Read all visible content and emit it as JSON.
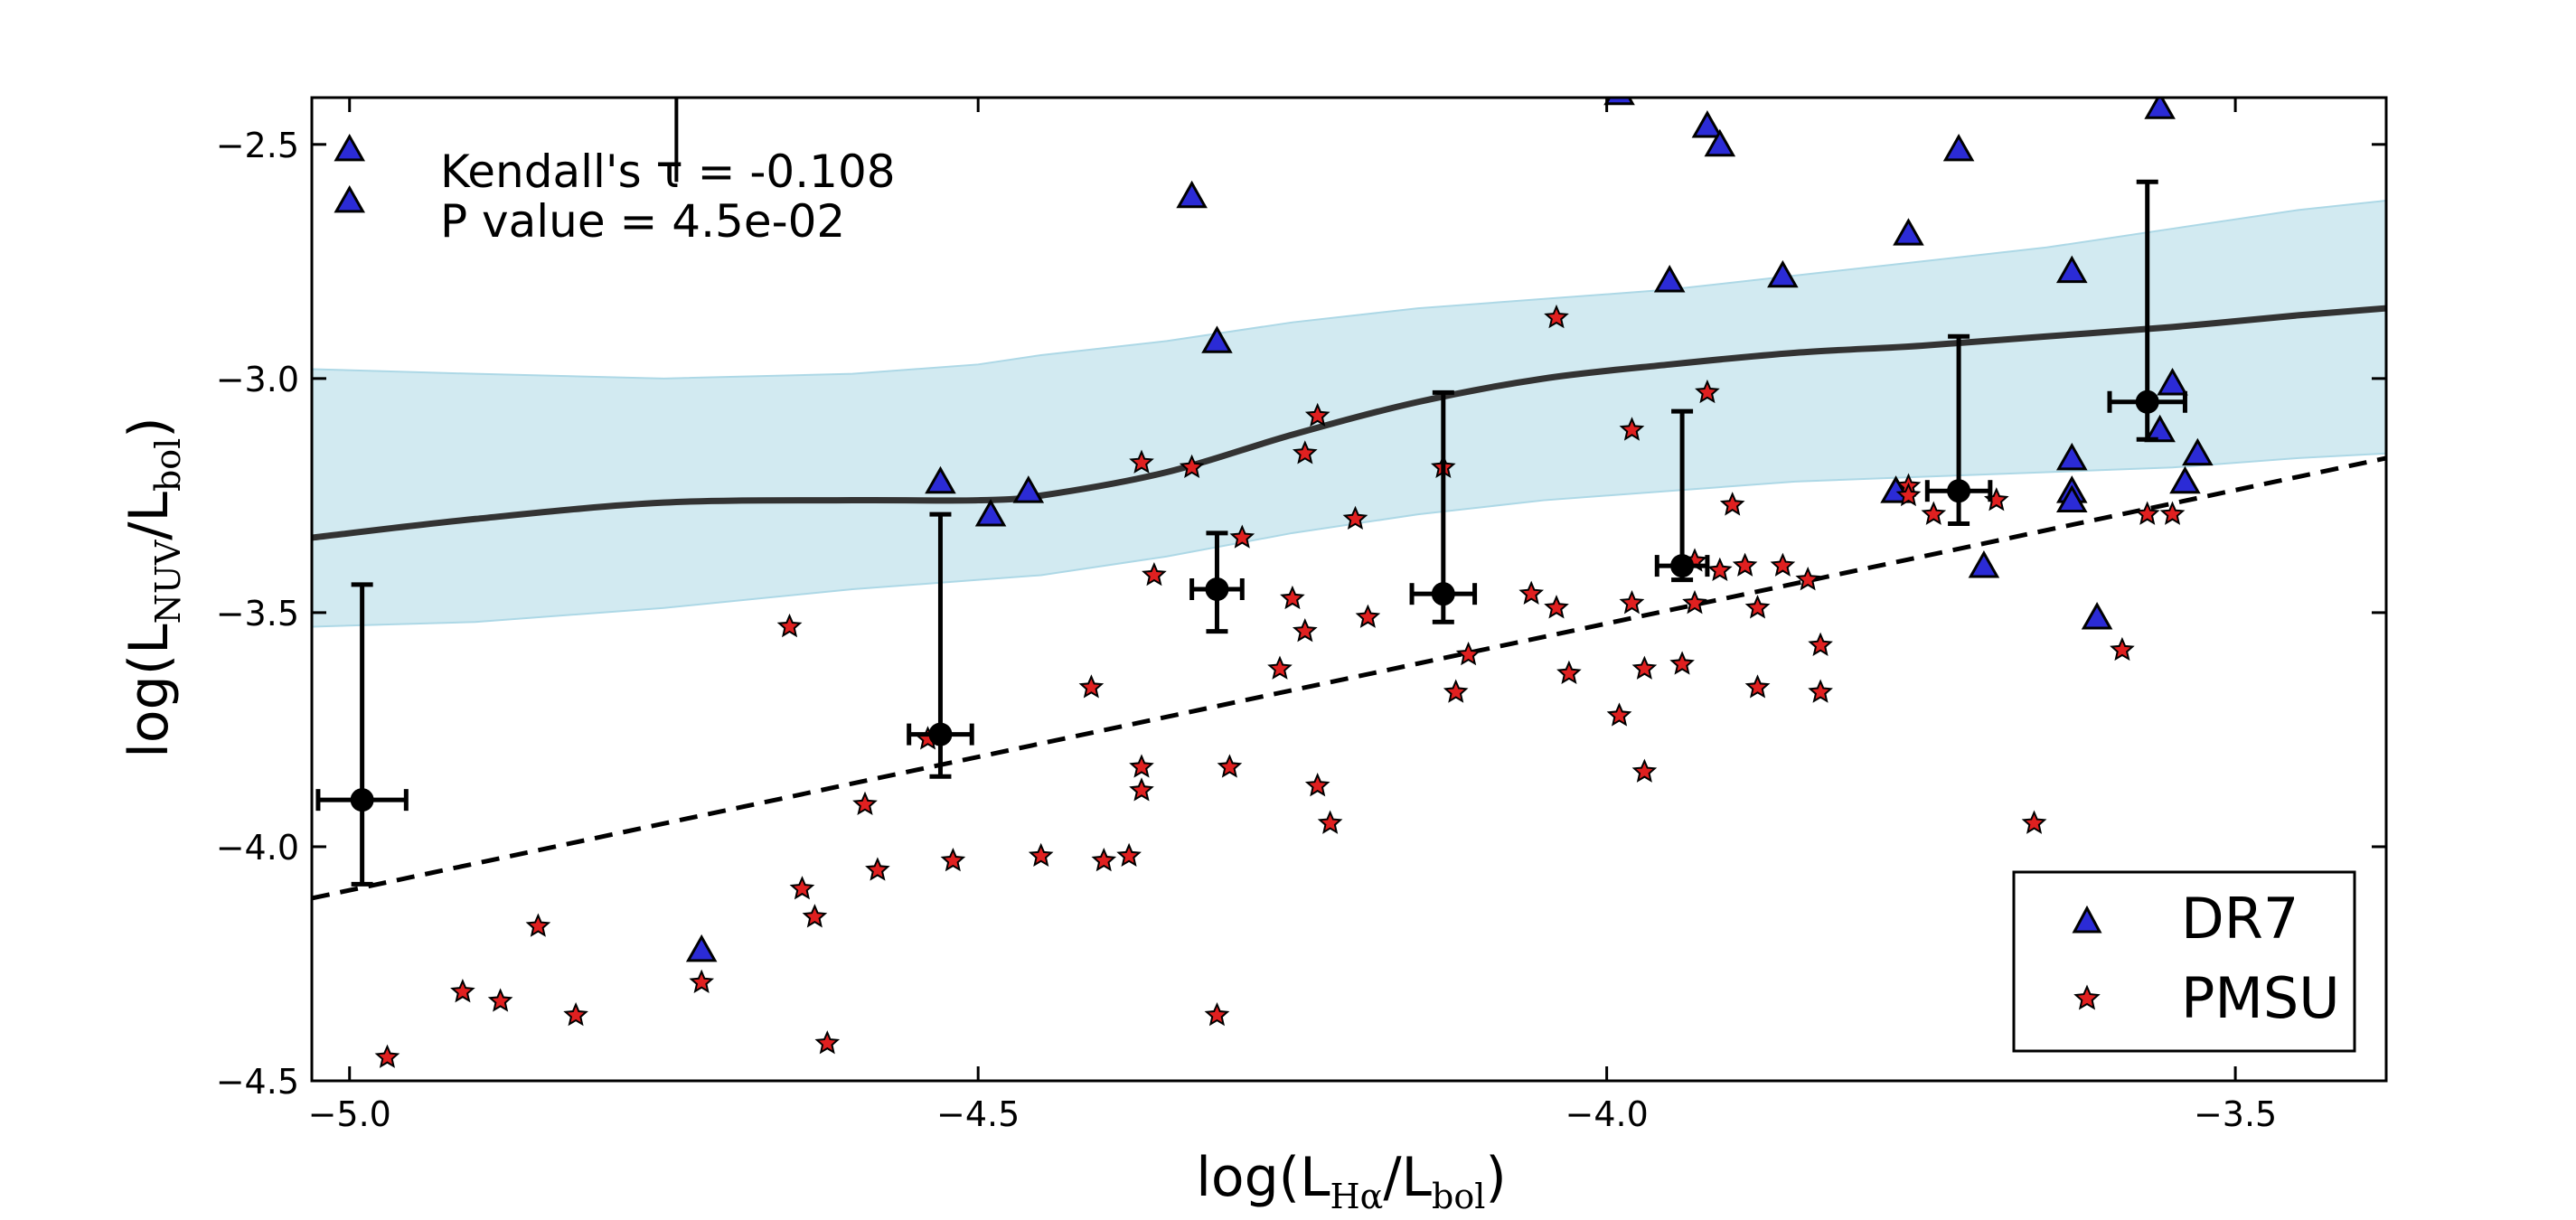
{
  "chart_data": {
    "type": "scatter",
    "xlabel": "log(L_Hα/L_bol)",
    "ylabel": "log(L_NUV/L_bol)",
    "xlabel_parts": {
      "prefix": "log(L",
      "sub1": "Hα",
      "mid": "/L",
      "sub2": "bol",
      "suffix": ")"
    },
    "ylabel_parts": {
      "prefix": "log(L",
      "sub1": "NUV",
      "mid": "/L",
      "sub2": "bol",
      "suffix": ")"
    },
    "xlim": [
      -5.03,
      -3.38
    ],
    "ylim": [
      -4.5,
      -2.4
    ],
    "xticks": [
      -5.0,
      -4.5,
      -4.0,
      -3.5
    ],
    "yticks": [
      -2.5,
      -3.0,
      -3.5,
      -4.0,
      -4.5
    ],
    "xtick_labels": [
      "−5.0",
      "−4.5",
      "−4.0",
      "−3.5"
    ],
    "ytick_labels": [
      "−2.5",
      "−3.0",
      "−3.5",
      "−4.0",
      "−4.5"
    ],
    "annotation": {
      "line1": "Kendall's τ = -0.108",
      "line2": "P value = 4.5e-02"
    },
    "legend": {
      "position": "lower-right",
      "entries": [
        "DR7",
        "PMSU"
      ]
    },
    "colors": {
      "dr7": "#2b2bd6",
      "pmsu": "#e02020",
      "band": "#add8e6",
      "fit": "#333333"
    },
    "series": [
      {
        "name": "DR7",
        "marker": "triangle",
        "points": [
          [
            -5.0,
            -2.51
          ],
          [
            -5.0,
            -2.62
          ],
          [
            -4.53,
            -3.22
          ],
          [
            -4.49,
            -3.29
          ],
          [
            -4.46,
            -3.24
          ],
          [
            -4.33,
            -2.61
          ],
          [
            -4.31,
            -2.92
          ],
          [
            -4.72,
            -4.22
          ],
          [
            -3.99,
            -2.39
          ],
          [
            -3.95,
            -2.79
          ],
          [
            -3.92,
            -2.46
          ],
          [
            -3.91,
            -2.5
          ],
          [
            -3.86,
            -2.78
          ],
          [
            -3.77,
            -3.24
          ],
          [
            -3.76,
            -2.69
          ],
          [
            -3.72,
            -2.51
          ],
          [
            -3.7,
            -3.4
          ],
          [
            -3.63,
            -2.77
          ],
          [
            -3.63,
            -3.17
          ],
          [
            -3.63,
            -3.24
          ],
          [
            -3.63,
            -3.26
          ],
          [
            -3.61,
            -3.51
          ],
          [
            -3.56,
            -2.42
          ],
          [
            -3.56,
            -3.11
          ],
          [
            -3.55,
            -3.01
          ],
          [
            -3.54,
            -3.22
          ],
          [
            -3.53,
            -3.16
          ]
        ]
      },
      {
        "name": "PMSU",
        "marker": "star",
        "points": [
          [
            -4.97,
            -4.45
          ],
          [
            -4.91,
            -4.31
          ],
          [
            -4.88,
            -4.33
          ],
          [
            -4.85,
            -4.17
          ],
          [
            -4.82,
            -4.36
          ],
          [
            -4.72,
            -4.29
          ],
          [
            -4.65,
            -3.53
          ],
          [
            -4.64,
            -4.09
          ],
          [
            -4.63,
            -4.15
          ],
          [
            -4.62,
            -4.42
          ],
          [
            -4.59,
            -3.91
          ],
          [
            -4.58,
            -4.05
          ],
          [
            -4.54,
            -3.77
          ],
          [
            -4.52,
            -4.03
          ],
          [
            -4.45,
            -4.02
          ],
          [
            -4.41,
            -3.66
          ],
          [
            -4.4,
            -4.03
          ],
          [
            -4.38,
            -4.02
          ],
          [
            -4.37,
            -3.88
          ],
          [
            -4.37,
            -3.83
          ],
          [
            -4.37,
            -3.18
          ],
          [
            -4.36,
            -3.42
          ],
          [
            -4.33,
            -3.19
          ],
          [
            -4.31,
            -4.36
          ],
          [
            -4.3,
            -3.83
          ],
          [
            -4.29,
            -3.34
          ],
          [
            -4.26,
            -3.62
          ],
          [
            -4.25,
            -3.47
          ],
          [
            -4.24,
            -3.54
          ],
          [
            -4.24,
            -3.16
          ],
          [
            -4.23,
            -3.08
          ],
          [
            -4.23,
            -3.87
          ],
          [
            -4.22,
            -3.95
          ],
          [
            -4.2,
            -3.3
          ],
          [
            -4.19,
            -3.51
          ],
          [
            -4.13,
            -3.19
          ],
          [
            -4.12,
            -3.67
          ],
          [
            -4.11,
            -3.59
          ],
          [
            -4.06,
            -3.46
          ],
          [
            -4.04,
            -3.49
          ],
          [
            -4.04,
            -2.87
          ],
          [
            -4.03,
            -3.63
          ],
          [
            -3.99,
            -3.72
          ],
          [
            -3.98,
            -3.11
          ],
          [
            -3.98,
            -3.48
          ],
          [
            -3.97,
            -3.62
          ],
          [
            -3.97,
            -3.84
          ],
          [
            -3.94,
            -3.61
          ],
          [
            -3.93,
            -3.48
          ],
          [
            -3.93,
            -3.39
          ],
          [
            -3.92,
            -3.03
          ],
          [
            -3.91,
            -3.41
          ],
          [
            -3.9,
            -3.27
          ],
          [
            -3.89,
            -3.4
          ],
          [
            -3.88,
            -3.49
          ],
          [
            -3.88,
            -3.66
          ],
          [
            -3.86,
            -3.4
          ],
          [
            -3.84,
            -3.43
          ],
          [
            -3.83,
            -3.57
          ],
          [
            -3.83,
            -3.67
          ],
          [
            -3.76,
            -3.23
          ],
          [
            -3.76,
            -3.25
          ],
          [
            -3.74,
            -3.29
          ],
          [
            -3.69,
            -3.26
          ],
          [
            -3.66,
            -3.95
          ],
          [
            -3.59,
            -3.58
          ],
          [
            -3.57,
            -3.29
          ],
          [
            -3.55,
            -3.29
          ]
        ]
      }
    ],
    "binned_means": [
      {
        "x": -4.99,
        "y": -3.9,
        "xerr": 0.035,
        "y_lo": -4.08,
        "y_hi": -3.44
      },
      {
        "x": -4.53,
        "y": -3.76,
        "xerr": 0.025,
        "y_lo": -3.85,
        "y_hi": -3.29
      },
      {
        "x": -4.31,
        "y": -3.45,
        "xerr": 0.02,
        "y_lo": -3.54,
        "y_hi": -3.33
      },
      {
        "x": -4.13,
        "y": -3.46,
        "xerr": 0.025,
        "y_lo": -3.52,
        "y_hi": -3.03
      },
      {
        "x": -3.94,
        "y": -3.4,
        "xerr": 0.02,
        "y_lo": -3.43,
        "y_hi": -3.07
      },
      {
        "x": -3.72,
        "y": -3.24,
        "xerr": 0.025,
        "y_lo": -3.31,
        "y_hi": -2.91
      },
      {
        "x": -3.57,
        "y": -3.05,
        "xerr": 0.03,
        "y_lo": -3.13,
        "y_hi": -2.58
      }
    ],
    "fit_curve": {
      "x": [
        -5.03,
        -4.9,
        -4.75,
        -4.6,
        -4.5,
        -4.45,
        -4.35,
        -4.25,
        -4.15,
        -4.05,
        -3.95,
        -3.85,
        -3.75,
        -3.65,
        -3.55,
        -3.45,
        -3.38
      ],
      "y": [
        -3.34,
        -3.3,
        -3.265,
        -3.26,
        -3.26,
        -3.25,
        -3.2,
        -3.12,
        -3.05,
        -3.0,
        -2.97,
        -2.945,
        -2.93,
        -2.91,
        -2.89,
        -2.865,
        -2.85
      ]
    },
    "confidence_band": {
      "x": [
        -5.03,
        -4.9,
        -4.75,
        -4.6,
        -4.5,
        -4.45,
        -4.35,
        -4.25,
        -4.15,
        -4.05,
        -3.95,
        -3.85,
        -3.75,
        -3.65,
        -3.55,
        -3.45,
        -3.38
      ],
      "upper": [
        -2.98,
        -2.99,
        -3.0,
        -2.99,
        -2.97,
        -2.95,
        -2.92,
        -2.88,
        -2.85,
        -2.83,
        -2.81,
        -2.78,
        -2.75,
        -2.72,
        -2.68,
        -2.64,
        -2.62
      ],
      "lower": [
        -3.53,
        -3.52,
        -3.49,
        -3.45,
        -3.43,
        -3.42,
        -3.38,
        -3.33,
        -3.29,
        -3.26,
        -3.24,
        -3.22,
        -3.21,
        -3.2,
        -3.19,
        -3.17,
        -3.16
      ]
    },
    "dashed_line": {
      "x": [
        -5.03,
        -3.38
      ],
      "y": [
        -4.11,
        -3.17
      ]
    },
    "stray_segment": {
      "x": -4.74,
      "y_top": -2.4,
      "y_bottom": -2.58
    }
  }
}
